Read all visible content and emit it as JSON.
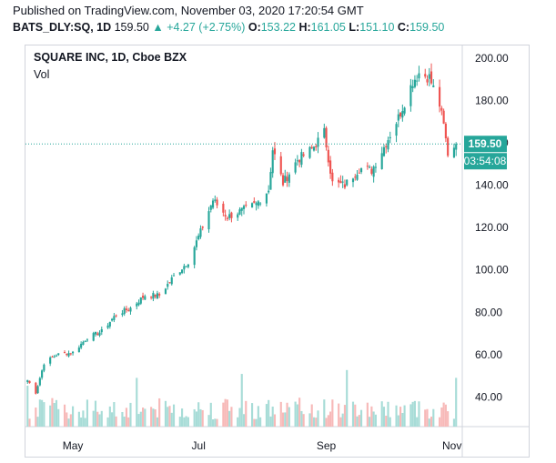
{
  "header": {
    "published": "Published on TradingView.com, November 03, 2020 17:20:54 GMT",
    "symbol": "BATS_DLY:SQ, 1D",
    "price": "159.50",
    "change": "+4.27 (+2.75%)",
    "o_label": "O:",
    "o_value": "153.22",
    "h_label": "H:",
    "h_value": "161.05",
    "l_label": "L:",
    "l_value": "151.10",
    "c_label": "C:",
    "c_value": "159.50"
  },
  "chart": {
    "title": "SQUARE INC, 1D, Cboe BZX",
    "vol_label": "Vol",
    "last_price_tag": "159.50",
    "countdown_tag": "03:54:08"
  },
  "colors": {
    "up": "#26a69a",
    "down": "#ef5350",
    "vol_up": "#a7dcd7",
    "vol_down": "#f7b9b8",
    "last_price": "#26a69a"
  },
  "chart_data": {
    "type": "candlestick",
    "title": "SQUARE INC, 1D, Cboe BZX",
    "x_tick_labels": [
      "May",
      "Jul",
      "Sep",
      "Nov"
    ],
    "y_tick_labels": [
      "40.00",
      "60.00",
      "80.00",
      "100.00",
      "120.00",
      "140.00",
      "160.00",
      "180.00",
      "200.00"
    ],
    "ylim": [
      26,
      206
    ],
    "last_price": 159.5,
    "close_series_approx": [
      {
        "date": "2020-04-09",
        "close": 48
      },
      {
        "date": "2020-04-13",
        "close": 42
      },
      {
        "date": "2020-04-17",
        "close": 56
      },
      {
        "date": "2020-04-23",
        "close": 60
      },
      {
        "date": "2020-05-01",
        "close": 61
      },
      {
        "date": "2020-05-08",
        "close": 68
      },
      {
        "date": "2020-05-15",
        "close": 71
      },
      {
        "date": "2020-05-22",
        "close": 79
      },
      {
        "date": "2020-05-29",
        "close": 82
      },
      {
        "date": "2020-06-05",
        "close": 88
      },
      {
        "date": "2020-06-12",
        "close": 88
      },
      {
        "date": "2020-06-19",
        "close": 97
      },
      {
        "date": "2020-06-26",
        "close": 104
      },
      {
        "date": "2020-07-02",
        "close": 118
      },
      {
        "date": "2020-07-08",
        "close": 133
      },
      {
        "date": "2020-07-15",
        "close": 125
      },
      {
        "date": "2020-07-22",
        "close": 128
      },
      {
        "date": "2020-07-29",
        "close": 131
      },
      {
        "date": "2020-08-04",
        "close": 138
      },
      {
        "date": "2020-08-06",
        "close": 157
      },
      {
        "date": "2020-08-11",
        "close": 141
      },
      {
        "date": "2020-08-18",
        "close": 152
      },
      {
        "date": "2020-08-25",
        "close": 157
      },
      {
        "date": "2020-08-31",
        "close": 165
      },
      {
        "date": "2020-09-04",
        "close": 141
      },
      {
        "date": "2020-09-10",
        "close": 140
      },
      {
        "date": "2020-09-17",
        "close": 148
      },
      {
        "date": "2020-09-23",
        "close": 147
      },
      {
        "date": "2020-09-29",
        "close": 158
      },
      {
        "date": "2020-10-06",
        "close": 172
      },
      {
        "date": "2020-10-13",
        "close": 189
      },
      {
        "date": "2020-10-16",
        "close": 193
      },
      {
        "date": "2020-10-21",
        "close": 191
      },
      {
        "date": "2020-10-26",
        "close": 178
      },
      {
        "date": "2020-10-28",
        "close": 168
      },
      {
        "date": "2020-10-30",
        "close": 155
      },
      {
        "date": "2020-11-03",
        "close": 159.5
      }
    ]
  }
}
